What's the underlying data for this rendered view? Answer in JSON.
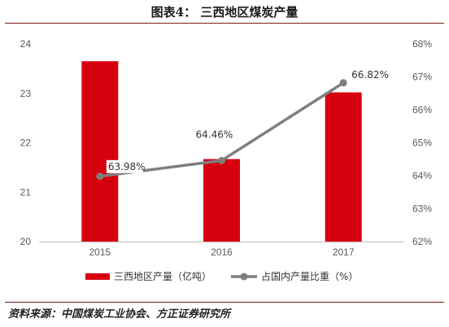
{
  "header": {
    "title": "图表4：  三西地区煤炭产量"
  },
  "footer": {
    "source": "资料来源：中国煤炭工业协会、方正证券研究所"
  },
  "chart_data": {
    "type": "bar",
    "categories": [
      "2015",
      "2016",
      "2017"
    ],
    "series": [
      {
        "name": "三西地区产量（亿吨）",
        "type": "bar",
        "axis": "left",
        "color": "#d7000f",
        "values": [
          23.65,
          21.67,
          23.02
        ]
      },
      {
        "name": "占国内产量比重（%）",
        "type": "line",
        "axis": "right",
        "color": "#7f7f7f",
        "values": [
          63.98,
          64.46,
          66.82
        ],
        "labels": [
          "63.98%",
          "64.46%",
          "66.82%"
        ]
      }
    ],
    "ylim_left": [
      20,
      24
    ],
    "yticks_left": [
      "20",
      "21",
      "22",
      "23",
      "24"
    ],
    "ylim_right": [
      62,
      68
    ],
    "yticks_right": [
      "62%",
      "63%",
      "64%",
      "65%",
      "66%",
      "67%",
      "68%"
    ],
    "grid": false,
    "legend_position": "bottom"
  }
}
